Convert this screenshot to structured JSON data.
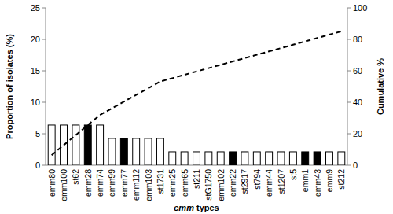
{
  "chart_data": {
    "type": "bar",
    "categories": [
      "emm80",
      "emm100",
      "st62",
      "emm28",
      "emm74",
      "emm99",
      "emm77",
      "emm112",
      "emm103",
      "st1731",
      "emm25",
      "emm65",
      "st211",
      "stG1750",
      "emm102",
      "emm22",
      "st2917",
      "st794",
      "emm44",
      "st1207",
      "st5",
      "emm1",
      "emm43",
      "emm9",
      "st212"
    ],
    "x_label": "emm types",
    "y_label": "Proportion of isolates (%)",
    "y2_label": "Cumulative %",
    "series": [
      {
        "type": "bar",
        "values": [
          6.38,
          6.38,
          6.38,
          6.38,
          6.38,
          4.26,
          4.26,
          4.26,
          4.26,
          4.26,
          2.13,
          2.13,
          2.13,
          2.13,
          2.13,
          2.13,
          2.13,
          2.13,
          2.13,
          2.13,
          2.13,
          2.13,
          2.13,
          2.13,
          2.13
        ],
        "colors": [
          "#ffffff",
          "#ffffff",
          "#ffffff",
          "#000000",
          "#ffffff",
          "#ffffff",
          "#000000",
          "#ffffff",
          "#ffffff",
          "#ffffff",
          "#ffffff",
          "#ffffff",
          "#ffffff",
          "#ffffff",
          "#ffffff",
          "#000000",
          "#ffffff",
          "#ffffff",
          "#ffffff",
          "#ffffff",
          "#ffffff",
          "#000000",
          "#000000",
          "#ffffff",
          "#ffffff"
        ]
      },
      {
        "type": "line",
        "axis": "y2",
        "color": "#000000",
        "line_style": "dashed",
        "values": [
          6.38,
          12.77,
          19.15,
          25.53,
          31.91,
          36.17,
          40.43,
          44.68,
          48.94,
          53.19,
          55.32,
          57.45,
          59.57,
          61.7,
          63.83,
          65.96,
          68.09,
          70.21,
          72.34,
          74.47,
          76.6,
          78.72,
          80.85,
          82.98,
          85.11
        ]
      }
    ],
    "ylim": [
      0,
      25
    ],
    "yticks": [
      0,
      5,
      10,
      15,
      20,
      25
    ],
    "y2lim": [
      0,
      100
    ],
    "y2ticks": [
      0,
      20,
      40,
      60,
      80,
      100
    ],
    "grid": false
  }
}
